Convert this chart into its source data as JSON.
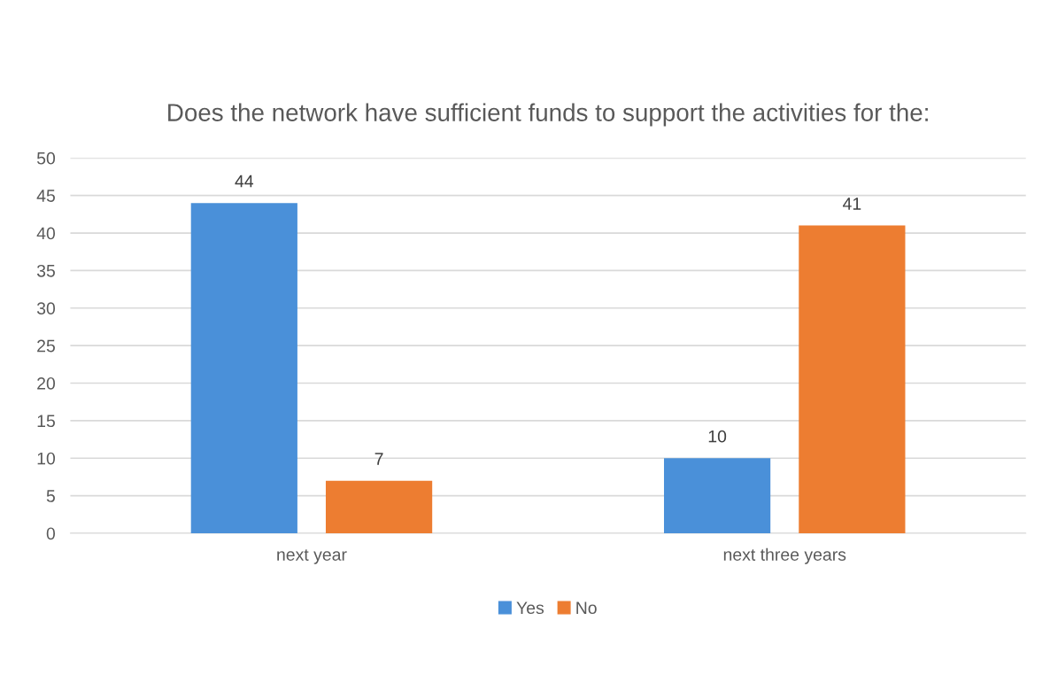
{
  "chart_data": {
    "type": "bar",
    "title": "Does the network have sufficient funds to support the activities for the:",
    "categories": [
      "next year",
      "next three years"
    ],
    "series": [
      {
        "name": "Yes",
        "color": "#4a90d9",
        "values": [
          44,
          10
        ]
      },
      {
        "name": "No",
        "color": "#ed7d31",
        "values": [
          7,
          41
        ]
      }
    ],
    "ylim": [
      0,
      50
    ],
    "yticks": [
      0,
      5,
      10,
      15,
      20,
      25,
      30,
      35,
      40,
      45,
      50
    ],
    "grid": "y",
    "legend": "bottom",
    "data_labels": true
  }
}
